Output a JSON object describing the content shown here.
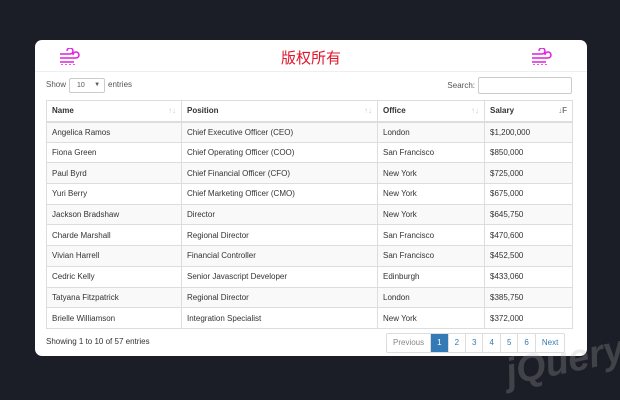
{
  "header": {
    "title": "版权所有",
    "logo_icon": "wind-icon",
    "accent": "#e01ee0"
  },
  "controls": {
    "show_label": "Show",
    "page_length": "10",
    "entries_label": "entries",
    "search_label": "Search:",
    "search_value": ""
  },
  "table": {
    "columns": [
      "Name",
      "Position",
      "Office",
      "Salary"
    ],
    "sorted_column": "Salary",
    "rows": [
      [
        "Angelica Ramos",
        "Chief Executive Officer (CEO)",
        "London",
        "$1,200,000"
      ],
      [
        "Fiona Green",
        "Chief Operating Officer (COO)",
        "San Francisco",
        "$850,000"
      ],
      [
        "Paul Byrd",
        "Chief Financial Officer (CFO)",
        "New York",
        "$725,000"
      ],
      [
        "Yuri Berry",
        "Chief Marketing Officer (CMO)",
        "New York",
        "$675,000"
      ],
      [
        "Jackson Bradshaw",
        "Director",
        "New York",
        "$645,750"
      ],
      [
        "Charde Marshall",
        "Regional Director",
        "San Francisco",
        "$470,600"
      ],
      [
        "Vivian Harrell",
        "Financial Controller",
        "San Francisco",
        "$452,500"
      ],
      [
        "Cedric Kelly",
        "Senior Javascript Developer",
        "Edinburgh",
        "$433,060"
      ],
      [
        "Tatyana Fitzpatrick",
        "Regional Director",
        "London",
        "$385,750"
      ],
      [
        "Brielle Williamson",
        "Integration Specialist",
        "New York",
        "$372,000"
      ]
    ]
  },
  "footer": {
    "info": "Showing 1 to 10 of 57 entries",
    "pagination": [
      "Previous",
      "1",
      "2",
      "3",
      "4",
      "5",
      "6",
      "Next"
    ],
    "active_page": "1",
    "primary_color": "#337ab7"
  },
  "watermark": "jQuery"
}
